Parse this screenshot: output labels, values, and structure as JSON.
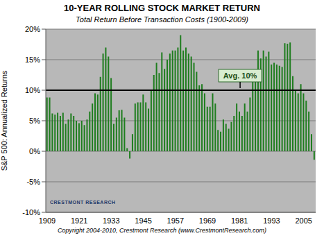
{
  "chart_data": {
    "type": "bar",
    "title": "10-YEAR ROLLING STOCK MARKET RETURN",
    "subtitle": "Total Return Before Transaction Costs (1900-2009)",
    "y_label": "S&P 500: Annualized Returns",
    "categories": [
      "1909",
      null,
      null,
      null,
      null,
      null,
      null,
      null,
      null,
      null,
      null,
      null,
      "1921",
      null,
      null,
      null,
      null,
      null,
      null,
      null,
      null,
      null,
      null,
      null,
      "1933",
      null,
      null,
      null,
      null,
      null,
      null,
      null,
      null,
      null,
      null,
      null,
      "1945",
      null,
      null,
      null,
      null,
      null,
      null,
      null,
      null,
      null,
      null,
      null,
      "1957",
      null,
      null,
      null,
      null,
      null,
      null,
      null,
      null,
      null,
      null,
      null,
      "1969",
      null,
      null,
      null,
      null,
      null,
      null,
      null,
      null,
      null,
      null,
      null,
      "1981",
      null,
      null,
      null,
      null,
      null,
      null,
      null,
      null,
      null,
      null,
      null,
      "1993",
      null,
      null,
      null,
      null,
      null,
      null,
      null,
      null,
      null,
      null,
      null,
      "2005",
      null,
      null,
      null,
      null
    ],
    "values": [
      8.8,
      8.8,
      6.2,
      6.0,
      6.3,
      5.8,
      6.3,
      4.5,
      5.2,
      6.2,
      5.8,
      5.0,
      4.6,
      5.0,
      4.3,
      5.2,
      6.5,
      7.8,
      9.5,
      9.3,
      12.2,
      16.0,
      17.0,
      15.5,
      12.0,
      4.5,
      5.5,
      6.7,
      6.8,
      5.5,
      0.5,
      -1.2,
      2.8,
      7.8,
      8.0,
      8.0,
      9.3,
      8.0,
      7.0,
      10.0,
      12.5,
      14.5,
      12.8,
      16.2,
      13.5,
      15.0,
      16.0,
      16.5,
      16.5,
      17.0,
      19.0,
      16.5,
      17.0,
      16.0,
      15.5,
      14.5,
      13.0,
      10.8,
      11.0,
      9.5,
      7.3,
      7.3,
      9.5,
      7.8,
      3.5,
      3.2,
      5.2,
      4.5,
      3.7,
      4.8,
      5.8,
      7.8,
      6.5,
      5.8,
      7.8,
      6.5,
      8.8,
      11.8,
      13.0,
      16.5,
      15.2,
      16.5,
      15.5,
      16.3,
      14.2,
      14.5,
      14.2,
      14.0,
      13.8,
      17.7,
      17.6,
      17.8,
      12.3,
      10.0,
      9.5,
      11.0,
      9.5,
      8.3,
      6.5,
      2.8,
      -1.4
    ],
    "color": "#1e7d1e",
    "ylim": [
      -10,
      20
    ],
    "yticks": [
      {
        "value": -10,
        "label": "-10%"
      },
      {
        "value": -5,
        "label": "-5%"
      },
      {
        "value": 0,
        "label": "0%"
      },
      {
        "value": 5,
        "label": "5%"
      },
      {
        "value": 10,
        "label": "10%"
      },
      {
        "value": 15,
        "label": "15%"
      },
      {
        "value": 20,
        "label": "20%"
      }
    ],
    "grid": true,
    "annotations": [
      {
        "text": "Avg. 10%",
        "y": 10
      }
    ],
    "logo": "CRESTMONT RESEARCH",
    "copyright": "Copyright 2004-2010, Crestmont Research (www.CrestmontResearch.com)"
  }
}
